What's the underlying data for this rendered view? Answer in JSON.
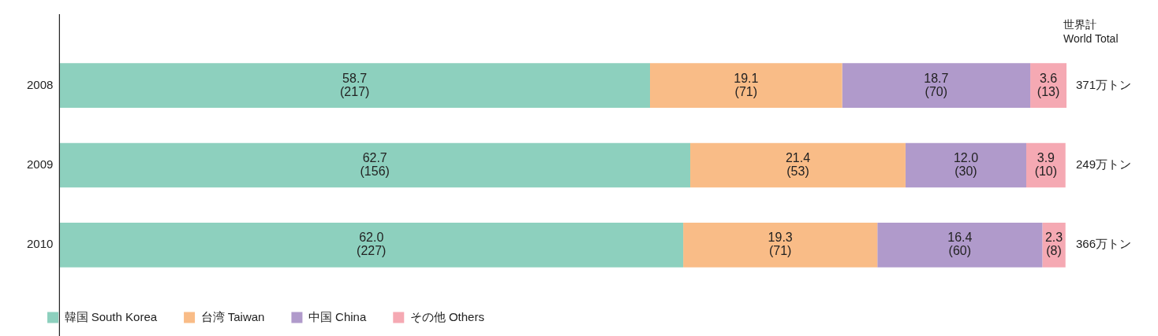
{
  "chart_data": {
    "type": "bar",
    "orientation": "horizontal",
    "stacked": true,
    "categories": [
      "2008",
      "2009",
      "2010"
    ],
    "series": [
      {
        "name": "韓国 South Korea",
        "color": "#8dd0be",
        "values": [
          58.7,
          62.7,
          62.0
        ],
        "value_labels": [
          "58.7\n(217)",
          "62.7\n(156)",
          "62.0\n(227)"
        ]
      },
      {
        "name": "台湾 Taiwan",
        "color": "#f9bc87",
        "values": [
          19.1,
          21.4,
          19.3
        ],
        "value_labels": [
          "19.1\n(71)",
          "21.4\n(53)",
          "19.3\n(71)"
        ]
      },
      {
        "name": "中国 China",
        "color": "#b09acb",
        "values": [
          18.7,
          12.0,
          16.4
        ],
        "value_labels": [
          "18.7\n(70)",
          "12.0\n(30)",
          "16.4\n(60)"
        ]
      },
      {
        "name": "その他 Others",
        "color": "#f5a9b3",
        "values": [
          3.6,
          3.9,
          2.3
        ],
        "value_labels": [
          "3.6\n(13)",
          "3.9\n(10)",
          "2.3\n(8)"
        ]
      }
    ],
    "xlim": [
      0,
      100.1
    ],
    "annotations": [
      "世界計\nWorld Total",
      "371万トン",
      "249万トン",
      "366万トン"
    ],
    "tick_labels": "y",
    "legend": "bottom left"
  }
}
